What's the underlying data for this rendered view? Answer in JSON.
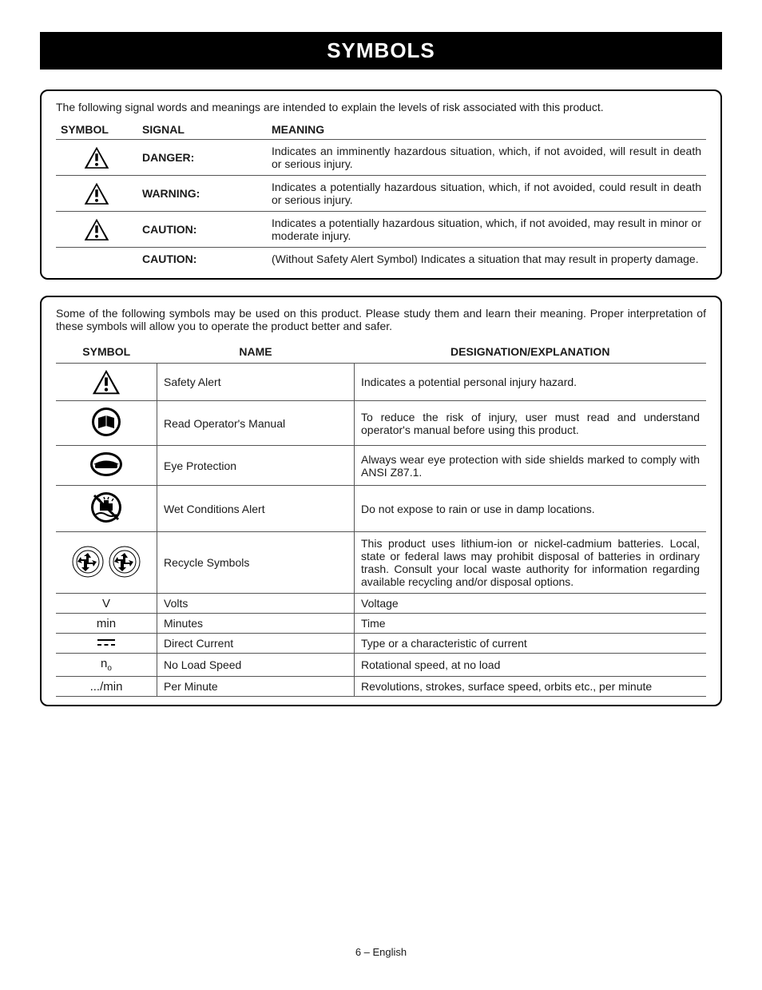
{
  "page": {
    "title": "SYMBOLS",
    "footer": "6 – English"
  },
  "signal_table": {
    "intro": "The following signal words and meanings are intended to explain the levels of risk associated with this product.",
    "headers": {
      "symbol": "SYMBOL",
      "signal": "SIGNAL",
      "meaning": "MEANING"
    },
    "rows": [
      {
        "has_icon": true,
        "signal": "DANGER:",
        "meaning": "Indicates an imminently hazardous situation, which, if not avoided, will result in death or serious injury."
      },
      {
        "has_icon": true,
        "signal": "WARNING:",
        "meaning": "Indicates a potentially hazardous situation, which, if not avoided, could result in death or serious injury."
      },
      {
        "has_icon": true,
        "signal": "CAUTION:",
        "meaning": "Indicates a potentially hazardous situation, which, if not avoided, may result in minor or moderate injury."
      },
      {
        "has_icon": false,
        "signal": "CAUTION:",
        "meaning": "(Without Safety Alert Symbol) Indicates a situation that may result in property damage."
      }
    ]
  },
  "symbol_table": {
    "intro": "Some of the following symbols may be used on this product. Please study them and learn their meaning. Proper interpretation of these symbols will allow you to operate the product better and safer.",
    "headers": {
      "symbol": "SYMBOL",
      "name": "NAME",
      "designation": "DESIGNATION/EXPLANATION"
    },
    "rows": [
      {
        "icon": "alert",
        "name": "Safety Alert",
        "desc": "Indicates a potential personal injury hazard."
      },
      {
        "icon": "manual",
        "name": "Read Operator's Manual",
        "desc": "To reduce the risk of injury, user must read and understand operator's manual before using this product."
      },
      {
        "icon": "eye",
        "name": "Eye Protection",
        "desc": "Always wear eye protection with side shields marked to comply with ANSI Z87.1."
      },
      {
        "icon": "wet",
        "name": "Wet Conditions Alert",
        "desc": "Do not expose to rain or use in damp locations."
      },
      {
        "icon": "recycle",
        "name": "Recycle Symbols",
        "desc": "This product uses lithium-ion or nickel-cadmium batteries. Local, state or federal laws may prohibit disposal of batteries in ordinary trash. Consult your local waste authority for information regarding available recycling and/or disposal options."
      },
      {
        "icon": "text",
        "symbol_text": "V",
        "name": "Volts",
        "desc": "Voltage",
        "short": true
      },
      {
        "icon": "text",
        "symbol_text": "min",
        "name": "Minutes",
        "desc": "Time",
        "short": true
      },
      {
        "icon": "dc",
        "name": "Direct Current",
        "desc": "Type or a characteristic of current",
        "short": true
      },
      {
        "icon": "no",
        "name": "No Load Speed",
        "desc": "Rotational speed, at no load",
        "short": true
      },
      {
        "icon": "text",
        "symbol_text": ".../min",
        "name": "Per Minute",
        "desc": "Revolutions, strokes, surface speed, orbits etc., per minute",
        "short": true
      }
    ]
  },
  "style": {
    "title_bg": "#000000",
    "title_fg": "#ffffff",
    "border_color": "#000000",
    "grid_color": "#555555",
    "body_font": "Arial",
    "title_fontsize": 26,
    "body_fontsize": 14
  }
}
